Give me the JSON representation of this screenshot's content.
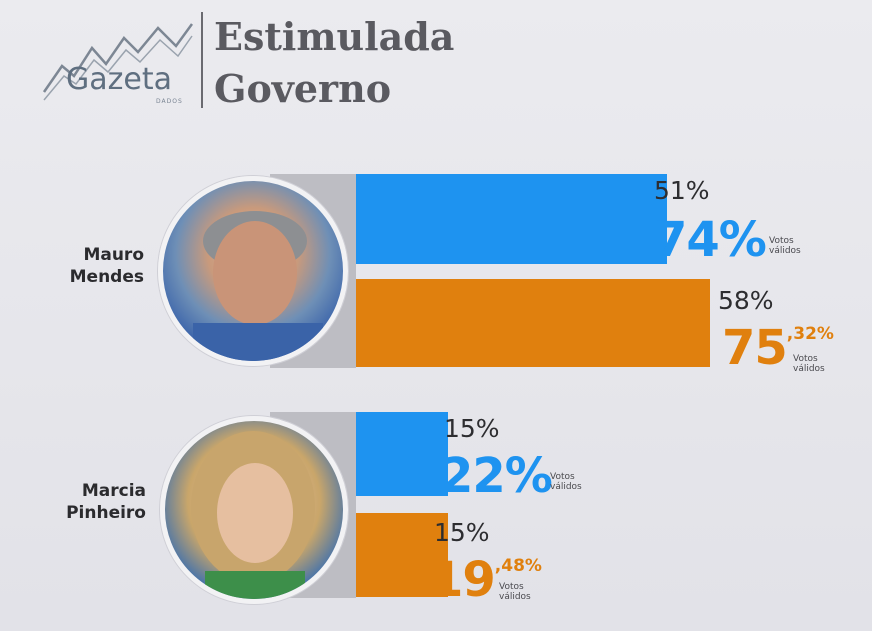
{
  "header": {
    "logo_text": "Gazeta",
    "logo_sub": "DADOS",
    "title_line1": "Estimulada",
    "title_line2": "Governo"
  },
  "colors": {
    "blue_series": "#1e93f0",
    "orange_series": "#e0800e",
    "track": "#bdbdc3"
  },
  "chart_data": {
    "type": "bar",
    "orientation": "horizontal",
    "title": "Estimulada Governo",
    "categories": [
      "Mauro Mendes",
      "Marcia Pinheiro"
    ],
    "series": [
      {
        "color": "#1e93f0",
        "values": [
          51,
          15
        ],
        "valid_votes_labels": [
          {
            "int": "74%",
            "dec": ""
          },
          {
            "int": "22%",
            "dec": ""
          }
        ]
      },
      {
        "color": "#e0800e",
        "values": [
          58,
          15
        ],
        "valid_votes_labels": [
          {
            "int": "75",
            "dec": ",32%"
          },
          {
            "int": "19",
            "dec": ",48%"
          }
        ]
      }
    ],
    "value_labels": [
      [
        "51%",
        "58%"
      ],
      [
        "15%",
        "15%"
      ]
    ],
    "valid_votes_caption_1": "Votos",
    "valid_votes_caption_2": "válidos",
    "xlim": [
      0,
      100
    ],
    "grid": false,
    "legend": "none"
  },
  "candidates": [
    {
      "name_line1": "Mauro",
      "name_line2": "Mendes",
      "photo_icon": "candidate-portrait"
    },
    {
      "name_line1": "Marcia",
      "name_line2": "Pinheiro",
      "photo_icon": "candidate-portrait"
    }
  ]
}
